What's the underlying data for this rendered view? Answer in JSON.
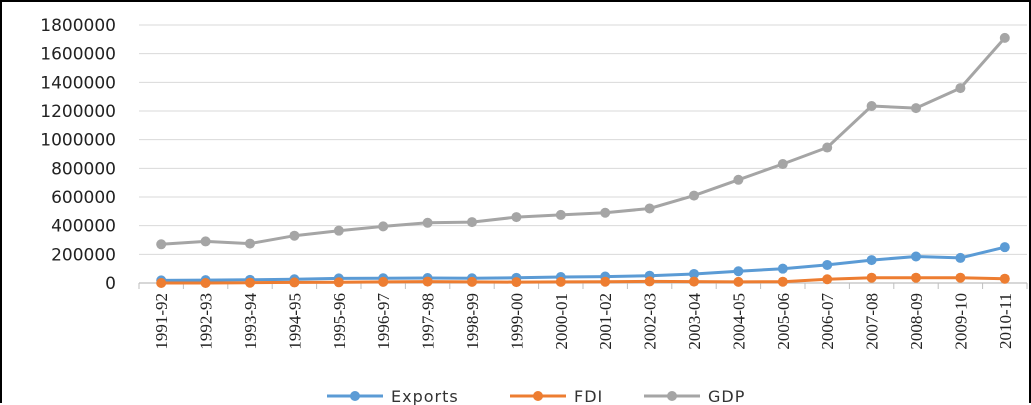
{
  "chart_data": {
    "type": "line",
    "title": "",
    "xlabel": "",
    "ylabel": "",
    "categories": [
      "1991-92",
      "1992-93",
      "1993-94",
      "1994-95",
      "1995-96",
      "1996-97",
      "1997-98",
      "1998-99",
      "1999-00",
      "2000-01",
      "2001-02",
      "2002-03",
      "2003-04",
      "2004-05",
      "2005-06",
      "2006-07",
      "2007-08",
      "2008-09",
      "2009-10",
      "2010-11"
    ],
    "ylim": [
      0,
      1800000
    ],
    "yticks": [
      "0",
      "200000",
      "400000",
      "600000",
      "800000",
      "1000000",
      "1200000",
      "1400000",
      "1600000",
      "1800000"
    ],
    "grid": true,
    "legend_position": "bottom",
    "series": [
      {
        "name": "Exports",
        "color": "#5b9bd5",
        "values": [
          18000,
          20000,
          22000,
          26000,
          32000,
          33000,
          35000,
          33000,
          36000,
          42000,
          45000,
          51000,
          63000,
          82000,
          100000,
          126000,
          160000,
          185000,
          175000,
          250000
        ]
      },
      {
        "name": "FDI",
        "color": "#ed7d31",
        "values": [
          0,
          0,
          2000,
          4000,
          5000,
          8000,
          10000,
          8000,
          6000,
          8000,
          9000,
          11000,
          10000,
          8000,
          9000,
          26000,
          37000,
          37000,
          37000,
          30000
        ]
      },
      {
        "name": "GDP",
        "color": "#a5a5a5",
        "values": [
          270000,
          290000,
          275000,
          330000,
          365000,
          395000,
          420000,
          425000,
          460000,
          475000,
          490000,
          520000,
          610000,
          720000,
          830000,
          945000,
          1235000,
          1220000,
          1360000,
          1710000
        ]
      }
    ]
  }
}
